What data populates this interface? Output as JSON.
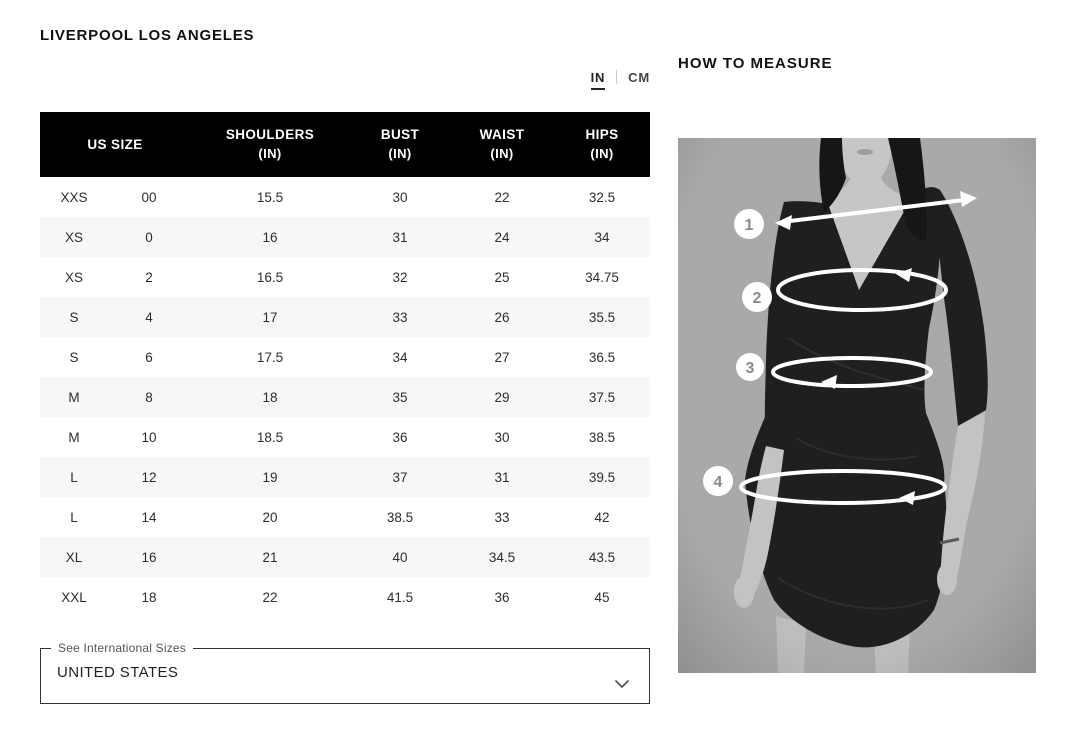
{
  "brand": {
    "title": "LIVERPOOL LOS ANGELES"
  },
  "unit_toggle": {
    "in": "IN",
    "cm": "CM",
    "active": "IN"
  },
  "size_table": {
    "columns": [
      {
        "label": "US SIZE",
        "unit": ""
      },
      {
        "label": "SHOULDERS",
        "unit": "(IN)"
      },
      {
        "label": "BUST",
        "unit": "(IN)"
      },
      {
        "label": "WAIST",
        "unit": "(IN)"
      },
      {
        "label": "HIPS",
        "unit": "(IN)"
      }
    ],
    "rows": [
      [
        "XXS",
        "00",
        "15.5",
        "30",
        "22",
        "32.5"
      ],
      [
        "XS",
        "0",
        "16",
        "31",
        "24",
        "34"
      ],
      [
        "XS",
        "2",
        "16.5",
        "32",
        "25",
        "34.75"
      ],
      [
        "S",
        "4",
        "17",
        "33",
        "26",
        "35.5"
      ],
      [
        "S",
        "6",
        "17.5",
        "34",
        "27",
        "36.5"
      ],
      [
        "M",
        "8",
        "18",
        "35",
        "29",
        "37.5"
      ],
      [
        "M",
        "10",
        "18.5",
        "36",
        "30",
        "38.5"
      ],
      [
        "L",
        "12",
        "19",
        "37",
        "31",
        "39.5"
      ],
      [
        "L",
        "14",
        "20",
        "38.5",
        "33",
        "42"
      ],
      [
        "XL",
        "16",
        "21",
        "40",
        "34.5",
        "43.5"
      ],
      [
        "XXL",
        "18",
        "22",
        "41.5",
        "36",
        "45"
      ]
    ]
  },
  "international": {
    "label": "See International Sizes",
    "value": "UNITED STATES"
  },
  "measure": {
    "title": "HOW TO MEASURE",
    "markers": [
      "1",
      "2",
      "3",
      "4"
    ]
  },
  "colors": {
    "header_bg": "#000000",
    "header_text": "#ffffff",
    "row_alt": "#f7f7f7",
    "text": "#2d2d2d",
    "photo_bg": "#a9a9a9",
    "overlay": "#ffffff"
  }
}
